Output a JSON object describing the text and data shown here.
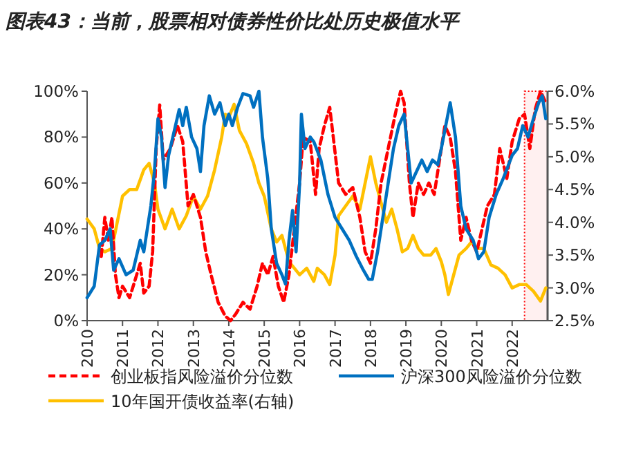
{
  "chart_data": {
    "type": "line",
    "title": "图表43：当前，股票相对债券性价比处历史极值水平",
    "xlim": [
      2010,
      2023
    ],
    "xticks": [
      2010,
      2011,
      2012,
      2013,
      2014,
      2015,
      2016,
      2017,
      2018,
      2019,
      2020,
      2021,
      2022
    ],
    "ylim": [
      0,
      100
    ],
    "yticks": [
      {
        "value": 0,
        "label": "0%"
      },
      {
        "value": 20,
        "label": "20%"
      },
      {
        "value": 40,
        "label": "40%"
      },
      {
        "value": 60,
        "label": "60%"
      },
      {
        "value": 80,
        "label": "80%"
      },
      {
        "value": 100,
        "label": "100%"
      }
    ],
    "y2lim": [
      2.5,
      6.0
    ],
    "y2ticks": [
      {
        "value": 2.5,
        "label": "2.5%"
      },
      {
        "value": 3.0,
        "label": "3.0%"
      },
      {
        "value": 3.5,
        "label": "3.5%"
      },
      {
        "value": 4.0,
        "label": "4.0%"
      },
      {
        "value": 4.5,
        "label": "4.5%"
      },
      {
        "value": 5.0,
        "label": "5.0%"
      },
      {
        "value": 5.5,
        "label": "5.5%"
      },
      {
        "value": 6.0,
        "label": "6.0%"
      }
    ],
    "legend": "bottom",
    "marker": "none",
    "bands": [
      {
        "axis": "x",
        "from": 2022.35,
        "to": 2023,
        "color": "#ff0000"
      }
    ],
    "series": [
      {
        "name": "创业板指风险溢价分位数",
        "color": "#ff0000",
        "line_style": "dashed",
        "x": [
          2010.4,
          2010.5,
          2010.6,
          2010.7,
          2010.8,
          2010.9,
          2011.0,
          2011.2,
          2011.4,
          2011.5,
          2011.6,
          2011.75,
          2011.85,
          2011.95,
          2012.05,
          2012.15,
          2012.35,
          2012.55,
          2012.7,
          2012.85,
          2013.0,
          2013.2,
          2013.35,
          2013.5,
          2013.7,
          2013.9,
          2014.05,
          2014.2,
          2014.4,
          2014.6,
          2014.8,
          2014.95,
          2015.1,
          2015.25,
          2015.4,
          2015.55,
          2015.7,
          2015.85,
          2016.0,
          2016.1,
          2016.3,
          2016.45,
          2016.55,
          2016.7,
          2016.85,
          2016.95,
          2017.1,
          2017.3,
          2017.5,
          2017.7,
          2017.85,
          2018.0,
          2018.15,
          2018.3,
          2018.5,
          2018.7,
          2018.85,
          2018.95,
          2019.1,
          2019.2,
          2019.35,
          2019.5,
          2019.65,
          2019.8,
          2019.95,
          2020.1,
          2020.25,
          2020.4,
          2020.55,
          2020.7,
          2020.85,
          2021.0,
          2021.15,
          2021.3,
          2021.5,
          2021.65,
          2021.85,
          2022.0,
          2022.2,
          2022.35,
          2022.5,
          2022.65,
          2022.8,
          2022.95
        ],
        "values": [
          28,
          45,
          35,
          45,
          20,
          10,
          15,
          10,
          20,
          25,
          12,
          15,
          30,
          75,
          94,
          70,
          75,
          85,
          78,
          50,
          55,
          45,
          30,
          20,
          8,
          2,
          0,
          3,
          8,
          5,
          15,
          25,
          20,
          28,
          15,
          8,
          20,
          40,
          60,
          80,
          78,
          55,
          75,
          85,
          93,
          80,
          60,
          55,
          58,
          45,
          30,
          25,
          40,
          60,
          75,
          90,
          100,
          95,
          60,
          45,
          60,
          55,
          60,
          55,
          70,
          85,
          80,
          65,
          35,
          45,
          35,
          30,
          40,
          50,
          55,
          75,
          62,
          78,
          88,
          90,
          75,
          92,
          100,
          95
        ]
      },
      {
        "name": "沪深300风险溢价分位数",
        "color": "#0070c0",
        "line_style": "solid",
        "x": [
          2010.0,
          2010.2,
          2010.35,
          2010.5,
          2010.65,
          2010.75,
          2010.9,
          2011.1,
          2011.3,
          2011.5,
          2011.6,
          2011.8,
          2011.9,
          2012.0,
          2012.1,
          2012.2,
          2012.3,
          2012.45,
          2012.6,
          2012.7,
          2012.8,
          2012.95,
          2013.1,
          2013.2,
          2013.3,
          2013.45,
          2013.6,
          2013.75,
          2013.9,
          2014.0,
          2014.1,
          2014.25,
          2014.4,
          2014.6,
          2014.7,
          2014.85,
          2014.95,
          2015.1,
          2015.2,
          2015.35,
          2015.5,
          2015.6,
          2015.7,
          2015.8,
          2015.9,
          2016.0,
          2016.05,
          2016.15,
          2016.3,
          2016.4,
          2016.6,
          2016.8,
          2017.0,
          2017.2,
          2017.4,
          2017.6,
          2017.8,
          2017.95,
          2018.05,
          2018.2,
          2018.35,
          2018.5,
          2018.65,
          2018.8,
          2018.95,
          2019.05,
          2019.15,
          2019.3,
          2019.45,
          2019.6,
          2019.75,
          2019.9,
          2020.0,
          2020.25,
          2020.4,
          2020.55,
          2020.7,
          2020.9,
          2021.05,
          2021.2,
          2021.35,
          2021.55,
          2021.75,
          2022.0,
          2022.15,
          2022.3,
          2022.45,
          2022.6,
          2022.75,
          2022.85,
          2022.95
        ],
        "values": [
          10,
          15,
          33,
          35,
          40,
          22,
          27,
          20,
          22,
          35,
          30,
          50,
          65,
          88,
          80,
          58,
          72,
          82,
          92,
          85,
          93,
          80,
          75,
          65,
          85,
          98,
          90,
          95,
          85,
          90,
          85,
          93,
          99,
          98,
          93,
          100,
          80,
          62,
          40,
          25,
          20,
          16,
          35,
          48,
          30,
          60,
          90,
          75,
          80,
          78,
          70,
          55,
          45,
          40,
          35,
          28,
          22,
          18,
          18,
          30,
          45,
          60,
          75,
          85,
          90,
          75,
          60,
          65,
          70,
          65,
          70,
          68,
          75,
          95,
          80,
          50,
          40,
          35,
          27,
          30,
          45,
          55,
          62,
          72,
          75,
          85,
          80,
          88,
          95,
          98,
          88
        ]
      },
      {
        "name": "10年国开债收益率(右轴)",
        "color": "#ffc000",
        "line_style": "solid",
        "axis": "y2",
        "x": [
          2010.0,
          2010.2,
          2010.35,
          2010.5,
          2010.7,
          2010.85,
          2011.0,
          2011.2,
          2011.4,
          2011.6,
          2011.75,
          2011.9,
          2012.0,
          2012.2,
          2012.4,
          2012.6,
          2012.8,
          2013.0,
          2013.2,
          2013.4,
          2013.6,
          2013.8,
          2013.9,
          2014.0,
          2014.15,
          2014.3,
          2014.5,
          2014.7,
          2014.85,
          2015.0,
          2015.2,
          2015.35,
          2015.5,
          2015.7,
          2015.85,
          2016.0,
          2016.2,
          2016.4,
          2016.5,
          2016.7,
          2016.85,
          2017.0,
          2017.1,
          2017.3,
          2017.5,
          2017.7,
          2017.85,
          2018.0,
          2018.15,
          2018.3,
          2018.45,
          2018.6,
          2018.75,
          2018.9,
          2019.05,
          2019.2,
          2019.35,
          2019.5,
          2019.7,
          2019.85,
          2020.0,
          2020.1,
          2020.2,
          2020.35,
          2020.5,
          2020.7,
          2020.85,
          2021.0,
          2021.2,
          2021.4,
          2021.6,
          2021.8,
          2022.0,
          2022.2,
          2022.4,
          2022.6,
          2022.8,
          2022.95
        ],
        "values": [
          4.05,
          3.9,
          3.6,
          3.55,
          3.6,
          4.0,
          4.4,
          4.5,
          4.5,
          4.8,
          4.9,
          4.6,
          4.2,
          3.9,
          4.2,
          3.9,
          4.1,
          4.4,
          4.2,
          4.4,
          4.8,
          5.3,
          5.65,
          5.6,
          5.8,
          5.4,
          5.2,
          4.9,
          4.6,
          4.4,
          3.9,
          3.7,
          3.8,
          3.4,
          3.3,
          3.2,
          3.3,
          3.1,
          3.3,
          3.2,
          3.05,
          3.5,
          4.1,
          4.25,
          4.4,
          4.2,
          4.6,
          5.0,
          4.6,
          4.3,
          4.0,
          4.2,
          3.9,
          3.55,
          3.6,
          3.8,
          3.6,
          3.5,
          3.5,
          3.6,
          3.4,
          3.2,
          2.9,
          3.2,
          3.5,
          3.6,
          3.7,
          3.6,
          3.6,
          3.35,
          3.3,
          3.2,
          3.0,
          3.05,
          3.05,
          2.95,
          2.8,
          3.0
        ]
      }
    ]
  }
}
